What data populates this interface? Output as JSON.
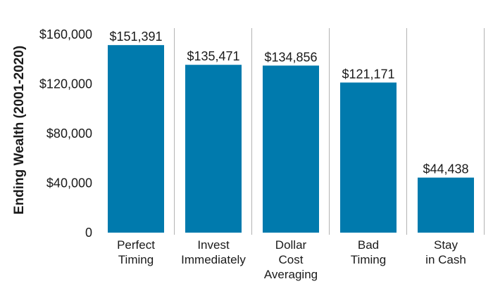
{
  "chart_data": {
    "type": "bar",
    "title": "",
    "xlabel": "",
    "ylabel": "Ending Wealth (2001-2020)",
    "categories": [
      [
        "Perfect",
        "Timing"
      ],
      [
        "Invest",
        "Immediately"
      ],
      [
        "Dollar",
        "Cost",
        "Averaging"
      ],
      [
        "Bad",
        "Timing"
      ],
      [
        "Stay",
        "in Cash"
      ]
    ],
    "values": [
      151391,
      135471,
      134856,
      121171,
      44438
    ],
    "value_labels": [
      "$151,391",
      "$135,471",
      "$134,856",
      "$121,171",
      "$44,438"
    ],
    "yticks": [
      {
        "value": 0,
        "label": "0"
      },
      {
        "value": 40000,
        "label": "$40,000"
      },
      {
        "value": 80000,
        "label": "$80,000"
      },
      {
        "value": 120000,
        "label": "$120,000"
      },
      {
        "value": 160000,
        "label": "$160,000"
      }
    ],
    "ylim": [
      0,
      160000
    ],
    "grid": false,
    "colors": {
      "bar": "#007aad",
      "divider": "#b3b3b3"
    }
  }
}
